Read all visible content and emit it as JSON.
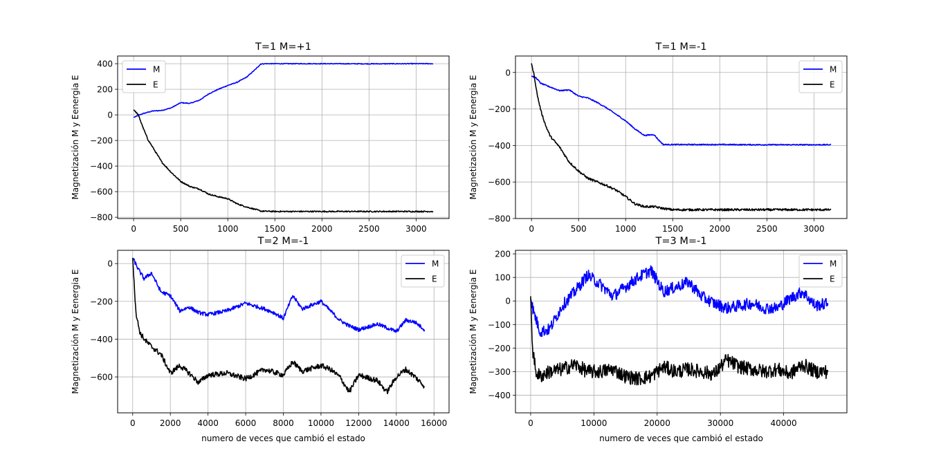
{
  "chart_data": [
    {
      "type": "line",
      "title": "T=1 M=+1",
      "xlabel": "",
      "ylabel": "Magnetización M y Eenergia E",
      "xlim": [
        -170,
        3350
      ],
      "ylim": [
        -810,
        460
      ],
      "xticks": [
        0,
        500,
        1000,
        1500,
        2000,
        2500,
        3000
      ],
      "yticks": [
        -800,
        -600,
        -400,
        -200,
        0,
        200,
        400
      ],
      "xtick_labels": [
        "0",
        "500",
        "1000",
        "1500",
        "2000",
        "2500",
        "3000"
      ],
      "ytick_labels": [
        "−800",
        "−600",
        "−400",
        "−200",
        "0",
        "200",
        "400"
      ],
      "grid": true,
      "legend_position": "upper-left",
      "series": [
        {
          "name": "M",
          "color": "#0000ff",
          "noise": 3,
          "x": [
            0,
            100,
            200,
            300,
            400,
            500,
            600,
            700,
            800,
            900,
            1000,
            1100,
            1200,
            1300,
            1350,
            1400,
            1600,
            2000,
            2500,
            3000,
            3180
          ],
          "y": [
            -20,
            10,
            30,
            35,
            55,
            95,
            90,
            115,
            165,
            200,
            230,
            255,
            295,
            360,
            398,
            400,
            400,
            400,
            399,
            400,
            400
          ]
        },
        {
          "name": "E",
          "color": "#000000",
          "noise": 5,
          "x": [
            0,
            50,
            100,
            150,
            200,
            300,
            400,
            500,
            600,
            700,
            800,
            900,
            1000,
            1100,
            1200,
            1300,
            1350,
            1500,
            2000,
            2500,
            3000,
            3180
          ],
          "y": [
            40,
            0,
            -100,
            -190,
            -250,
            -370,
            -450,
            -520,
            -560,
            -580,
            -620,
            -640,
            -655,
            -695,
            -720,
            -740,
            -752,
            -755,
            -755,
            -755,
            -755,
            -755
          ]
        }
      ]
    },
    {
      "type": "line",
      "title": "T=1 M=-1",
      "xlabel": "",
      "ylabel": "Magnetización M y Eenergia E",
      "xlim": [
        -170,
        3350
      ],
      "ylim": [
        -800,
        90
      ],
      "xticks": [
        0,
        500,
        1000,
        1500,
        2000,
        2500,
        3000
      ],
      "yticks": [
        -800,
        -600,
        -400,
        -200,
        0
      ],
      "xtick_labels": [
        "0",
        "500",
        "1000",
        "1500",
        "2000",
        "2500",
        "3000"
      ],
      "ytick_labels": [
        "−800",
        "−600",
        "−400",
        "−200",
        "0"
      ],
      "grid": true,
      "legend_position": "upper-right",
      "series": [
        {
          "name": "M",
          "color": "#0000ff",
          "noise": 3,
          "x": [
            0,
            50,
            100,
            200,
            300,
            400,
            500,
            600,
            700,
            800,
            900,
            1000,
            1100,
            1200,
            1300,
            1350,
            1400,
            1500,
            2000,
            2500,
            3000,
            3180
          ],
          "y": [
            -20,
            -30,
            -60,
            -80,
            -100,
            -95,
            -130,
            -140,
            -165,
            -195,
            -230,
            -265,
            -310,
            -345,
            -340,
            -370,
            -395,
            -395,
            -395,
            -396,
            -396,
            -396
          ]
        },
        {
          "name": "E",
          "color": "#000000",
          "noise": 6,
          "x": [
            0,
            30,
            60,
            100,
            150,
            200,
            300,
            400,
            500,
            600,
            700,
            800,
            900,
            1000,
            1100,
            1200,
            1300,
            1400,
            1500,
            2000,
            2500,
            3000,
            3180
          ],
          "y": [
            50,
            -20,
            -120,
            -210,
            -290,
            -350,
            -410,
            -490,
            -540,
            -580,
            -600,
            -620,
            -645,
            -680,
            -720,
            -735,
            -735,
            -745,
            -752,
            -752,
            -752,
            -752,
            -752
          ]
        }
      ]
    },
    {
      "type": "line",
      "title": "T=2 M=-1",
      "xlabel": "numero de veces que cambió el estado",
      "ylabel": "Magnetización M y Eenergia E",
      "xlim": [
        -800,
        16800
      ],
      "ylim": [
        -790,
        70
      ],
      "xticks": [
        0,
        2000,
        4000,
        6000,
        8000,
        10000,
        12000,
        14000,
        16000
      ],
      "yticks": [
        -600,
        -400,
        -200,
        0
      ],
      "xtick_labels": [
        "0",
        "2000",
        "4000",
        "6000",
        "8000",
        "10000",
        "12000",
        "14000",
        "16000"
      ],
      "ytick_labels": [
        "−600",
        "−400",
        "−200",
        "0"
      ],
      "grid": true,
      "legend_position": "upper-right",
      "series": [
        {
          "name": "M",
          "color": "#0000ff",
          "noise": 10,
          "x": [
            0,
            300,
            600,
            1000,
            1500,
            2000,
            2500,
            3000,
            3500,
            4000,
            5000,
            6000,
            7000,
            7500,
            8000,
            8500,
            9000,
            10000,
            10500,
            11000,
            11500,
            12000,
            13000,
            14000,
            14500,
            15000,
            15500
          ],
          "y": [
            30,
            -30,
            -80,
            -50,
            -150,
            -170,
            -250,
            -230,
            -260,
            -270,
            -250,
            -210,
            -240,
            -260,
            -290,
            -170,
            -240,
            -200,
            -250,
            -300,
            -330,
            -350,
            -320,
            -360,
            -300,
            -310,
            -350
          ]
        },
        {
          "name": "E",
          "color": "#000000",
          "noise": 14,
          "x": [
            0,
            100,
            200,
            400,
            700,
            1000,
            1500,
            2000,
            2500,
            3000,
            3500,
            4000,
            5000,
            6000,
            7000,
            8000,
            8500,
            9000,
            10000,
            10500,
            11000,
            11500,
            12000,
            13000,
            13500,
            14000,
            14500,
            15000,
            15500
          ],
          "y": [
            30,
            -150,
            -280,
            -370,
            -410,
            -440,
            -480,
            -580,
            -540,
            -580,
            -630,
            -590,
            -580,
            -610,
            -560,
            -590,
            -520,
            -570,
            -540,
            -560,
            -600,
            -680,
            -590,
            -620,
            -680,
            -600,
            -560,
            -600,
            -650
          ]
        }
      ]
    },
    {
      "type": "line",
      "title": "T=3 M=-1",
      "xlabel": "numero de veces que cambió el estado",
      "ylabel": "Magnetización M y Eenergia E",
      "xlim": [
        -2400,
        50000
      ],
      "ylim": [
        -475,
        215
      ],
      "xticks": [
        0,
        10000,
        20000,
        30000,
        40000
      ],
      "yticks": [
        -400,
        -300,
        -200,
        -100,
        0,
        100,
        200
      ],
      "xtick_labels": [
        "0",
        "10000",
        "20000",
        "30000",
        "40000"
      ],
      "ytick_labels": [
        "−400",
        "−300",
        "−200",
        "−100",
        "0",
        "100",
        "200"
      ],
      "grid": true,
      "legend_position": "upper-right",
      "series": [
        {
          "name": "M",
          "color": "#0000ff",
          "noise": 25,
          "x": [
            0,
            500,
            1500,
            3000,
            5000,
            7000,
            9000,
            11000,
            13000,
            15000,
            17000,
            19000,
            21000,
            23000,
            25000,
            27000,
            29000,
            31000,
            33000,
            35000,
            37000,
            39000,
            41000,
            43000,
            45000,
            47000
          ],
          "y": [
            10,
            -50,
            -130,
            -120,
            -20,
            40,
            110,
            70,
            20,
            60,
            100,
            130,
            40,
            60,
            80,
            20,
            -10,
            -30,
            -20,
            -10,
            -30,
            -30,
            10,
            40,
            -20,
            -10
          ]
        },
        {
          "name": "E",
          "color": "#000000",
          "noise": 30,
          "x": [
            0,
            300,
            800,
            1500,
            3000,
            5000,
            7000,
            9000,
            11000,
            13000,
            15000,
            17000,
            19000,
            21000,
            23000,
            25000,
            27000,
            29000,
            31000,
            33000,
            35000,
            37000,
            39000,
            41000,
            43000,
            45000,
            47000
          ],
          "y": [
            20,
            -200,
            -300,
            -320,
            -300,
            -290,
            -270,
            -300,
            -300,
            -290,
            -320,
            -330,
            -320,
            -280,
            -300,
            -290,
            -300,
            -310,
            -250,
            -280,
            -290,
            -300,
            -290,
            -310,
            -270,
            -300,
            -300
          ]
        }
      ]
    }
  ]
}
